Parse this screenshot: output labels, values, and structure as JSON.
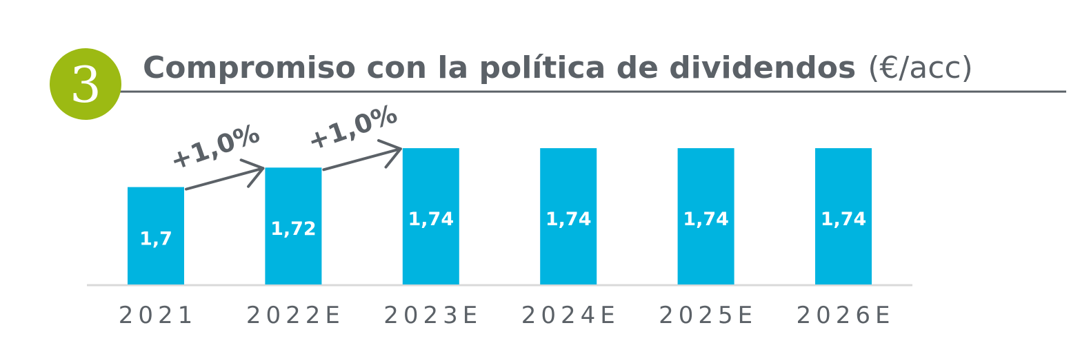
{
  "header": {
    "badge_number": "3",
    "title_bold": "Compromiso con la política de dividendos",
    "title_unit": "(€/acc)"
  },
  "colors": {
    "bar": "#00b4e0",
    "badge": "#9cba13",
    "text": "#5b6167",
    "baseline": "#d9d9d9",
    "rule": "#5b6167"
  },
  "chart_data": {
    "type": "bar",
    "title": "Compromiso con la política de dividendos (€/acc)",
    "unit": "€/acc",
    "xlabel": "",
    "ylabel": "",
    "categories": [
      "2021",
      "2022E",
      "2023E",
      "2024E",
      "2025E",
      "2026E"
    ],
    "values": [
      1.7,
      1.72,
      1.74,
      1.74,
      1.74,
      1.74
    ],
    "value_labels": [
      "1,7",
      "1,72",
      "1,74",
      "1,74",
      "1,74",
      "1,74"
    ],
    "ylim": [
      1.6,
      1.745
    ],
    "grid": false,
    "legend": "none",
    "annotations": [
      {
        "text": "+1,0%",
        "from_category": "2021",
        "to_category": "2022E"
      },
      {
        "text": "+1,0%",
        "from_category": "2022E",
        "to_category": "2023E"
      }
    ]
  }
}
